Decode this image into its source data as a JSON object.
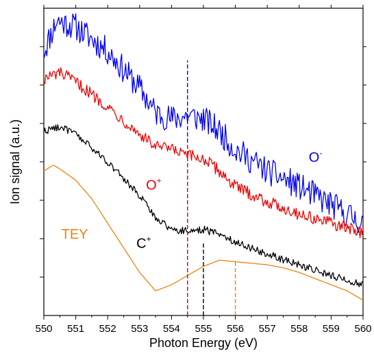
{
  "chart_data": {
    "type": "line",
    "xlabel": "Photon Energy (eV)",
    "ylabel": "Ion signal (a.u.)",
    "xlim": [
      550,
      560
    ],
    "ylim": [
      0,
      1
    ],
    "x_ticks": [
      "550",
      "551",
      "552",
      "553",
      "554",
      "555",
      "556",
      "557",
      "558",
      "559",
      "560"
    ],
    "y_ticks_labeled": false,
    "grid": false,
    "series": [
      {
        "name": "O",
        "superscript": "-",
        "color": "#0000ee",
        "noise": 0.045,
        "points": [
          [
            550,
            0.86
          ],
          [
            550.4,
            0.96
          ],
          [
            551,
            0.94
          ],
          [
            552,
            0.86
          ],
          [
            553,
            0.74
          ],
          [
            553.5,
            0.66
          ],
          [
            554,
            0.64
          ],
          [
            554.5,
            0.65
          ],
          [
            555,
            0.64
          ],
          [
            555.5,
            0.6
          ],
          [
            556,
            0.54
          ],
          [
            557,
            0.47
          ],
          [
            558,
            0.42
          ],
          [
            559,
            0.36
          ],
          [
            560,
            0.3
          ]
        ]
      },
      {
        "name": "O",
        "superscript": "+",
        "color": "#ee0000",
        "noise": 0.02,
        "points": [
          [
            550,
            0.77
          ],
          [
            550.5,
            0.79
          ],
          [
            551,
            0.76
          ],
          [
            552,
            0.68
          ],
          [
            553,
            0.59
          ],
          [
            553.5,
            0.55
          ],
          [
            554,
            0.54
          ],
          [
            554.5,
            0.52
          ],
          [
            555,
            0.51
          ],
          [
            555.5,
            0.47
          ],
          [
            556,
            0.42
          ],
          [
            557,
            0.37
          ],
          [
            558,
            0.33
          ],
          [
            559,
            0.3
          ],
          [
            560,
            0.27
          ]
        ]
      },
      {
        "name": "C",
        "superscript": "+",
        "color": "#000000",
        "noise": 0.012,
        "points": [
          [
            550,
            0.6
          ],
          [
            550.5,
            0.615
          ],
          [
            551,
            0.59
          ],
          [
            552,
            0.5
          ],
          [
            553,
            0.39
          ],
          [
            553.5,
            0.32
          ],
          [
            554,
            0.28
          ],
          [
            554.5,
            0.275
          ],
          [
            555,
            0.28
          ],
          [
            555.5,
            0.265
          ],
          [
            556,
            0.24
          ],
          [
            557,
            0.2
          ],
          [
            558,
            0.165
          ],
          [
            559,
            0.13
          ],
          [
            560,
            0.1
          ]
        ]
      },
      {
        "name": "TEY",
        "superscript": "",
        "color": "#f08010",
        "noise": 0,
        "points": [
          [
            550,
            0.47
          ],
          [
            550.3,
            0.49
          ],
          [
            550.6,
            0.47
          ],
          [
            551,
            0.44
          ],
          [
            551.5,
            0.38
          ],
          [
            552,
            0.3
          ],
          [
            552.5,
            0.22
          ],
          [
            553,
            0.14
          ],
          [
            553.5,
            0.08
          ],
          [
            554,
            0.1
          ],
          [
            554.5,
            0.13
          ],
          [
            555,
            0.16
          ],
          [
            555.5,
            0.18
          ],
          [
            556,
            0.175
          ],
          [
            556.5,
            0.17
          ],
          [
            557,
            0.165
          ],
          [
            557.5,
            0.155
          ],
          [
            558,
            0.14
          ],
          [
            558.5,
            0.12
          ],
          [
            559,
            0.1
          ],
          [
            559.5,
            0.08
          ],
          [
            560,
            0.05
          ]
        ]
      }
    ],
    "markers": [
      {
        "x": 554.5,
        "y_from": 0.0,
        "y_to": 0.83,
        "color": "#0000ee",
        "dashed": true
      },
      {
        "x": 554.5,
        "y_from": 0.0,
        "y_to": 0.56,
        "color": "#ee0000",
        "dashed": true
      },
      {
        "x": 555.0,
        "y_from": 0.0,
        "y_to": 0.24,
        "color": "#000000",
        "dashed": true
      },
      {
        "x": 556.0,
        "y_from": 0.0,
        "y_to": 0.18,
        "color": "#f08010",
        "dashed": true
      }
    ],
    "series_labels": [
      {
        "base": "O",
        "sup": "-",
        "x": 558.3,
        "y": 0.5,
        "color": "#0000ee"
      },
      {
        "base": "O",
        "sup": "+",
        "x": 553.2,
        "y": 0.41,
        "color": "#ee0000"
      },
      {
        "base": "C",
        "sup": "+",
        "x": 552.9,
        "y": 0.22,
        "color": "#000000"
      },
      {
        "base": "TEY",
        "sup": "",
        "x": 550.55,
        "y": 0.25,
        "color": "#f08010"
      }
    ]
  }
}
